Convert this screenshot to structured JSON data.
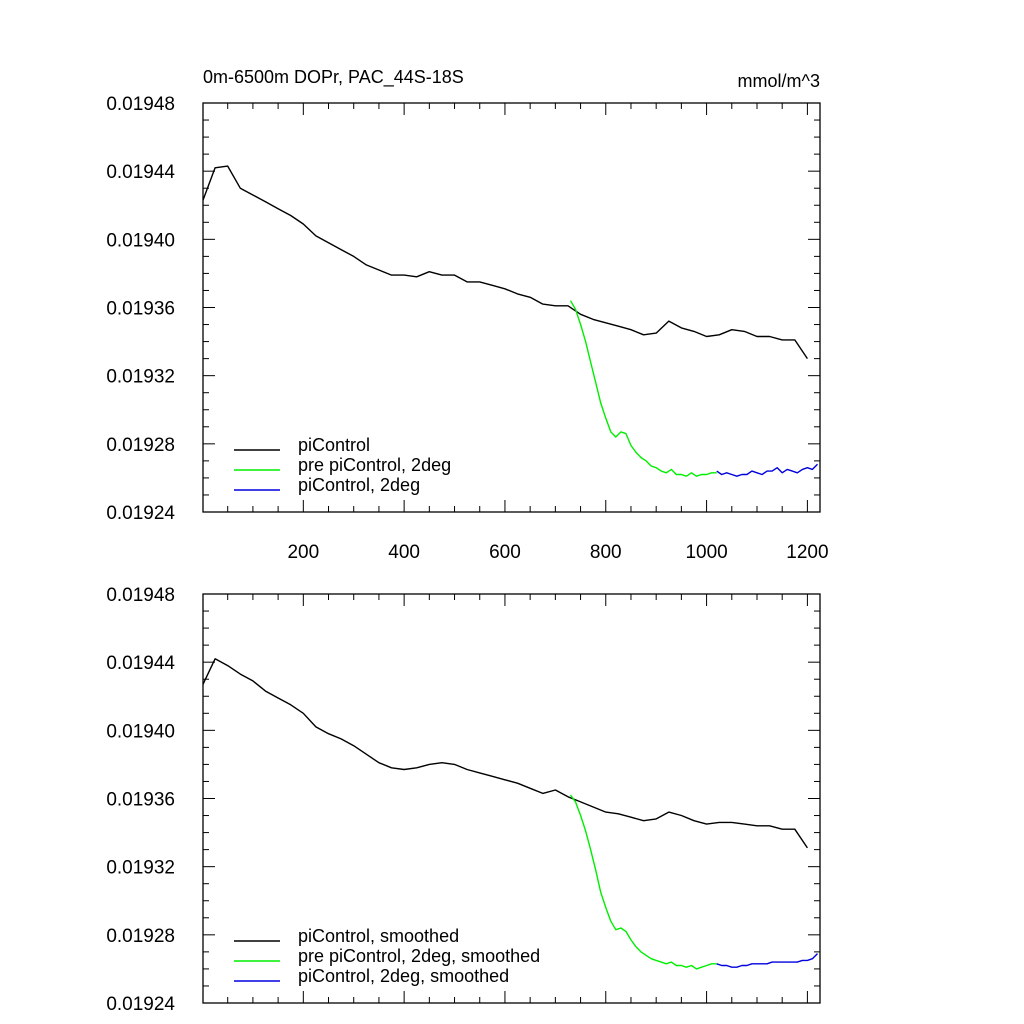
{
  "figure": {
    "title": "0m-6500m DOPr, PAC_44S-18S",
    "units": "mmol/m^3"
  },
  "colors": {
    "piControl": "#000000",
    "pre_piControl_2deg": "#00ee00",
    "piControl_2deg": "#0000dd"
  },
  "chart_data": [
    {
      "type": "line",
      "panel": "top",
      "title": "0m-6500m DOPr, PAC_44S-18S",
      "units": "mmol/m^3",
      "xlim": [
        1,
        1225
      ],
      "ylim": [
        0.01924,
        0.01948
      ],
      "x_ticks": [
        200,
        400,
        600,
        800,
        1000,
        1200
      ],
      "x_tick_labels": [
        "200",
        "400",
        "600",
        "800",
        "1000",
        "1200"
      ],
      "y_ticks": [
        0.01924,
        0.01928,
        0.01932,
        0.01936,
        0.0194,
        0.01944,
        0.01948
      ],
      "y_tick_labels": [
        "0.01924",
        "0.01928",
        "0.01932",
        "0.01936",
        "0.01940",
        "0.01944",
        "0.01948"
      ],
      "legend_position": "bottom-left",
      "series": [
        {
          "name": "piControl",
          "color": "#000000",
          "x": [
            1,
            25,
            50,
            75,
            100,
            125,
            150,
            175,
            200,
            225,
            250,
            275,
            300,
            325,
            350,
            375,
            400,
            425,
            450,
            475,
            500,
            525,
            550,
            575,
            600,
            625,
            650,
            675,
            700,
            725,
            750,
            775,
            800,
            825,
            850,
            875,
            900,
            925,
            950,
            975,
            1000,
            1025,
            1050,
            1075,
            1100,
            1125,
            1150,
            1175,
            1200
          ],
          "y": [
            0.019423,
            0.019442,
            0.019443,
            0.01943,
            0.019426,
            0.019422,
            0.019418,
            0.019414,
            0.019409,
            0.019402,
            0.019398,
            0.019394,
            0.01939,
            0.019385,
            0.019382,
            0.019379,
            0.019379,
            0.019378,
            0.019381,
            0.019379,
            0.019379,
            0.019375,
            0.019375,
            0.019373,
            0.019371,
            0.019368,
            0.019366,
            0.019362,
            0.019361,
            0.019361,
            0.019356,
            0.019353,
            0.019351,
            0.019349,
            0.019347,
            0.019344,
            0.019345,
            0.019352,
            0.019348,
            0.019346,
            0.019343,
            0.019344,
            0.019347,
            0.019346,
            0.019343,
            0.019343,
            0.019341,
            0.019341,
            0.01933
          ]
        },
        {
          "name": "pre piControl, 2deg",
          "color": "#00ee00",
          "x": [
            730,
            740,
            750,
            760,
            770,
            780,
            790,
            800,
            810,
            820,
            830,
            840,
            850,
            860,
            870,
            880,
            890,
            900,
            910,
            920,
            930,
            940,
            950,
            960,
            970,
            980,
            990,
            1000,
            1010,
            1020
          ],
          "y": [
            0.019364,
            0.019359,
            0.01935,
            0.01934,
            0.019328,
            0.019316,
            0.019304,
            0.019295,
            0.019287,
            0.019284,
            0.019287,
            0.019286,
            0.019279,
            0.019275,
            0.019272,
            0.01927,
            0.019267,
            0.019266,
            0.019264,
            0.019263,
            0.019265,
            0.019262,
            0.019262,
            0.019261,
            0.019263,
            0.019261,
            0.019262,
            0.019262,
            0.019263,
            0.019263
          ]
        },
        {
          "name": "piControl, 2deg",
          "color": "#0000dd",
          "x": [
            1020,
            1030,
            1040,
            1050,
            1060,
            1070,
            1080,
            1090,
            1100,
            1110,
            1120,
            1130,
            1140,
            1150,
            1160,
            1170,
            1180,
            1190,
            1200,
            1210,
            1220
          ],
          "y": [
            0.019264,
            0.019262,
            0.019263,
            0.019262,
            0.019261,
            0.019262,
            0.019262,
            0.019264,
            0.019263,
            0.019262,
            0.019264,
            0.019264,
            0.019266,
            0.019263,
            0.019265,
            0.019264,
            0.019263,
            0.019265,
            0.019266,
            0.019265,
            0.019268
          ]
        }
      ]
    },
    {
      "type": "line",
      "panel": "bottom",
      "xlim": [
        1,
        1225
      ],
      "ylim": [
        0.01924,
        0.01948
      ],
      "x_ticks": [
        200,
        400,
        600,
        800,
        1000,
        1200
      ],
      "y_ticks": [
        0.01924,
        0.01928,
        0.01932,
        0.01936,
        0.0194,
        0.01944,
        0.01948
      ],
      "y_tick_labels": [
        "0.01924",
        "0.01928",
        "0.01932",
        "0.01936",
        "0.01940",
        "0.01944",
        "0.01948"
      ],
      "legend_position": "bottom-left",
      "series": [
        {
          "name": "piControl, smoothed",
          "color": "#000000",
          "x": [
            1,
            25,
            50,
            75,
            100,
            125,
            150,
            175,
            200,
            225,
            250,
            275,
            300,
            325,
            350,
            375,
            400,
            425,
            450,
            475,
            500,
            525,
            550,
            575,
            600,
            625,
            650,
            675,
            700,
            725,
            750,
            775,
            800,
            825,
            850,
            875,
            900,
            925,
            950,
            975,
            1000,
            1025,
            1050,
            1075,
            1100,
            1125,
            1150,
            1175,
            1200
          ],
          "y": [
            0.019427,
            0.019442,
            0.019438,
            0.019433,
            0.019429,
            0.019423,
            0.019419,
            0.019415,
            0.01941,
            0.019402,
            0.019398,
            0.019395,
            0.019391,
            0.019386,
            0.019381,
            0.019378,
            0.019377,
            0.019378,
            0.01938,
            0.019381,
            0.01938,
            0.019377,
            0.019375,
            0.019373,
            0.019371,
            0.019369,
            0.019366,
            0.019363,
            0.019365,
            0.019361,
            0.019358,
            0.019355,
            0.019352,
            0.019351,
            0.019349,
            0.019347,
            0.019348,
            0.019352,
            0.01935,
            0.019347,
            0.019345,
            0.019346,
            0.019346,
            0.019345,
            0.019344,
            0.019344,
            0.019342,
            0.019342,
            0.019331
          ]
        },
        {
          "name": "pre piControl, 2deg, smoothed",
          "color": "#00ee00",
          "x": [
            730,
            740,
            750,
            760,
            770,
            780,
            790,
            800,
            810,
            820,
            830,
            840,
            850,
            860,
            870,
            880,
            890,
            900,
            910,
            920,
            930,
            940,
            950,
            960,
            970,
            980,
            990,
            1000,
            1010,
            1020
          ],
          "y": [
            0.019362,
            0.019358,
            0.01935,
            0.019341,
            0.01933,
            0.019318,
            0.019305,
            0.019296,
            0.019288,
            0.019283,
            0.019284,
            0.019282,
            0.019277,
            0.019273,
            0.01927,
            0.019268,
            0.019266,
            0.019265,
            0.019264,
            0.019263,
            0.019264,
            0.019262,
            0.019262,
            0.019261,
            0.019262,
            0.01926,
            0.019261,
            0.019262,
            0.019263,
            0.019263
          ]
        },
        {
          "name": "piControl, 2deg, smoothed",
          "color": "#0000dd",
          "x": [
            1020,
            1030,
            1040,
            1050,
            1060,
            1070,
            1080,
            1090,
            1100,
            1110,
            1120,
            1130,
            1140,
            1150,
            1160,
            1170,
            1180,
            1190,
            1200,
            1210,
            1220
          ],
          "y": [
            0.019263,
            0.019262,
            0.019262,
            0.019261,
            0.019261,
            0.019262,
            0.019262,
            0.019263,
            0.019263,
            0.019263,
            0.019263,
            0.019264,
            0.019264,
            0.019264,
            0.019264,
            0.019264,
            0.019264,
            0.019265,
            0.019265,
            0.019266,
            0.019269
          ]
        }
      ]
    }
  ]
}
